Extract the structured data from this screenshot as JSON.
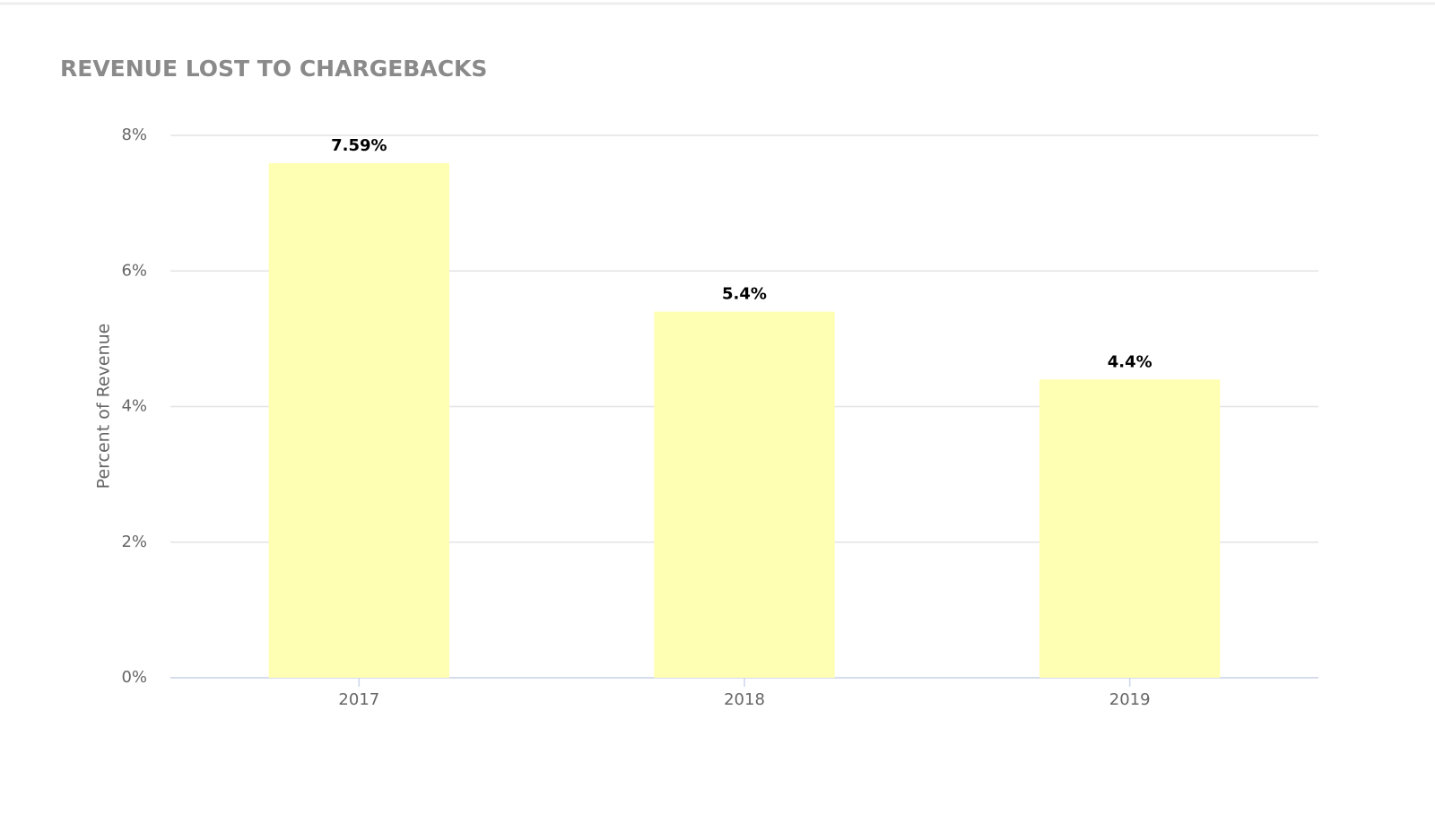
{
  "chart_data": {
    "type": "bar",
    "title": "REVENUE LOST TO CHARGEBACKS",
    "y_axis_label": "Percent of Revenue",
    "categories": [
      "2017",
      "2018",
      "2019"
    ],
    "values": [
      7.59,
      5.4,
      4.4
    ],
    "value_labels": [
      "7.59%",
      "5.4%",
      "4.4%"
    ],
    "color": "#ffffb3",
    "ylim": [
      0,
      8
    ],
    "yticks": [
      {
        "value": 0,
        "label": "0%"
      },
      {
        "value": 2,
        "label": "2%"
      },
      {
        "value": 4,
        "label": "4%"
      },
      {
        "value": 6,
        "label": "6%"
      },
      {
        "value": 8,
        "label": "8%"
      }
    ],
    "grid": true
  }
}
